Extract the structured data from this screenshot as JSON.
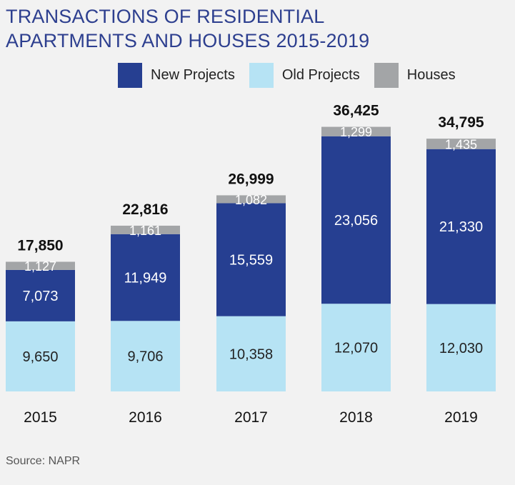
{
  "title_line1": "TRANSACTIONS OF RESIDENTIAL",
  "title_line2": "APARTMENTS AND HOUSES 2015-2019",
  "source": "Source: NAPR",
  "colors": {
    "new_projects": "#263f91",
    "old_projects": "#b6e3f4",
    "houses": "#a3a5a7"
  },
  "chart_data": {
    "type": "bar",
    "stacked": true,
    "categories": [
      "2015",
      "2016",
      "2017",
      "2018",
      "2019"
    ],
    "series": [
      {
        "name": "Old Projects",
        "values": [
          9650,
          9706,
          10358,
          12070,
          12030
        ]
      },
      {
        "name": "New Projects",
        "values": [
          7073,
          11949,
          15559,
          23056,
          21330
        ]
      },
      {
        "name": "Houses",
        "values": [
          1127,
          1161,
          1082,
          1299,
          1435
        ]
      }
    ],
    "totals": [
      "17,850",
      "22,816",
      "26,999",
      "36,425",
      "34,795"
    ],
    "value_labels": {
      "Old Projects": [
        "9,650",
        "9,706",
        "10,358",
        "12,070",
        "12,030"
      ],
      "New Projects": [
        "7,073",
        "11,949",
        "15,559",
        "23,056",
        "21,330"
      ],
      "Houses": [
        "1,127",
        "1,161",
        "1,082",
        "1,299",
        "1,435"
      ]
    },
    "legend": [
      "New Projects",
      "Old Projects",
      "Houses"
    ],
    "legend_position": "top",
    "grid": false
  }
}
